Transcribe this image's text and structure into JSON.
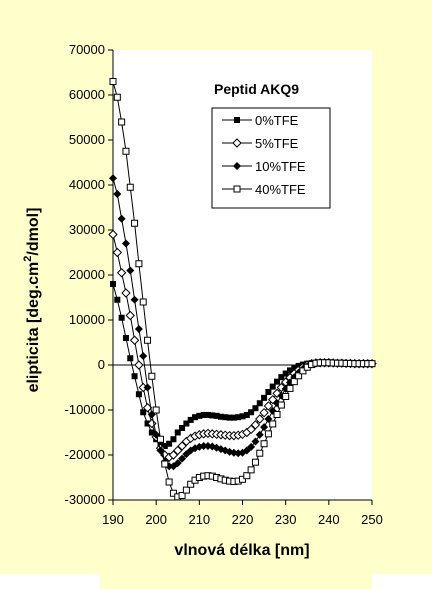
{
  "colors": {
    "background": "#ffffcc",
    "ink": "#000000",
    "plot_area": "#ffffff"
  },
  "chart_data": {
    "type": "line",
    "title": "",
    "xlabel": "vlnová délka [nm]",
    "ylabel_main": "elipticita [deg.cm",
    "ylabel_sup": "2",
    "ylabel_tail": "/dmol]",
    "xlim": [
      190,
      250
    ],
    "ylim": [
      -30000,
      70000
    ],
    "xticks": [
      "190",
      "200",
      "210",
      "220",
      "230",
      "240",
      "250"
    ],
    "yticks": [
      "70000",
      "60000",
      "50000",
      "40000",
      "30000",
      "20000",
      "10000",
      "0",
      "-10000",
      "-20000",
      "-30000"
    ],
    "grid": false,
    "legend": {
      "title": "Peptid  AKQ9",
      "placement": "inside top-right"
    },
    "series": [
      {
        "name": "0%TFE",
        "marker": "filled-square",
        "x": [
          190,
          191,
          192,
          193,
          194,
          195,
          196,
          197,
          198,
          199,
          200,
          201,
          202,
          203,
          204,
          205,
          206,
          207,
          208,
          209,
          210,
          211,
          212,
          213,
          214,
          215,
          216,
          217,
          218,
          219,
          220,
          221,
          222,
          223,
          224,
          225,
          226,
          227,
          228,
          229,
          230,
          231,
          232,
          233,
          234,
          235,
          236,
          237,
          238,
          239,
          240,
          241,
          242,
          243,
          244,
          245,
          246,
          247,
          248,
          249,
          250
        ],
        "y": [
          18000,
          14500,
          10500,
          6000,
          1500,
          -2500,
          -6500,
          -10500,
          -13000,
          -15000,
          -16500,
          -17800,
          -18000,
          -17500,
          -16500,
          -15000,
          -14000,
          -13000,
          -12200,
          -11600,
          -11300,
          -11100,
          -11100,
          -11200,
          -11300,
          -11500,
          -11600,
          -11700,
          -11700,
          -11600,
          -11400,
          -11100,
          -10500,
          -9600,
          -8500,
          -7300,
          -6000,
          -4800,
          -3700,
          -2700,
          -1900,
          -1200,
          -600,
          -200,
          100,
          300,
          400,
          450,
          450,
          450,
          400,
          400,
          350,
          350,
          300,
          300,
          300,
          300,
          300,
          300,
          300
        ]
      },
      {
        "name": "5%TFE",
        "marker": "open-diamond",
        "x": [
          190,
          191,
          192,
          193,
          194,
          195,
          196,
          197,
          198,
          199,
          200,
          201,
          202,
          203,
          204,
          205,
          206,
          207,
          208,
          209,
          210,
          211,
          212,
          213,
          214,
          215,
          216,
          217,
          218,
          219,
          220,
          221,
          222,
          223,
          224,
          225,
          226,
          227,
          228,
          229,
          230,
          231,
          232,
          233,
          234,
          235,
          236,
          237,
          238,
          239,
          240,
          241,
          242,
          243,
          244,
          245,
          246,
          247,
          248,
          249,
          250
        ],
        "y": [
          29000,
          25000,
          20500,
          16000,
          11000,
          5500,
          0,
          -5000,
          -9500,
          -13000,
          -16000,
          -18500,
          -20000,
          -20500,
          -20000,
          -19000,
          -18000,
          -17000,
          -16300,
          -15800,
          -15500,
          -15300,
          -15200,
          -15300,
          -15400,
          -15500,
          -15600,
          -15700,
          -15700,
          -15600,
          -15400,
          -15000,
          -14300,
          -13300,
          -12000,
          -10600,
          -9100,
          -7700,
          -6300,
          -5000,
          -3800,
          -2800,
          -1900,
          -1100,
          -500,
          0,
          300,
          450,
          500,
          500,
          500,
          450,
          400,
          400,
          350,
          350,
          300,
          300,
          300,
          300,
          300
        ]
      },
      {
        "name": "10%TFE",
        "marker": "filled-diamond",
        "x": [
          190,
          191,
          192,
          193,
          194,
          195,
          196,
          197,
          198,
          199,
          200,
          201,
          202,
          203,
          204,
          205,
          206,
          207,
          208,
          209,
          210,
          211,
          212,
          213,
          214,
          215,
          216,
          217,
          218,
          219,
          220,
          221,
          222,
          223,
          224,
          225,
          226,
          227,
          228,
          229,
          230,
          231,
          232,
          233,
          234,
          235,
          236,
          237,
          238,
          239,
          240,
          241,
          242,
          243,
          244,
          245,
          246,
          247,
          248,
          249,
          250
        ],
        "y": [
          41500,
          38000,
          32500,
          27000,
          21000,
          14500,
          8000,
          2000,
          -5000,
          -11000,
          -15500,
          -19000,
          -21500,
          -22500,
          -22500,
          -21800,
          -20800,
          -19800,
          -19000,
          -18500,
          -18200,
          -18000,
          -18000,
          -18100,
          -18400,
          -18700,
          -19000,
          -19300,
          -19500,
          -19600,
          -19500,
          -19000,
          -18200,
          -17000,
          -15500,
          -13800,
          -12000,
          -10200,
          -8500,
          -6800,
          -5300,
          -3900,
          -2700,
          -1700,
          -900,
          -300,
          200,
          400,
          500,
          500,
          500,
          450,
          400,
          400,
          350,
          350,
          300,
          300,
          300,
          300,
          300
        ]
      },
      {
        "name": "40%TFE",
        "marker": "open-square",
        "x": [
          190,
          191,
          192,
          193,
          194,
          195,
          196,
          197,
          198,
          199,
          200,
          201,
          202,
          203,
          204,
          205,
          206,
          207,
          208,
          209,
          210,
          211,
          212,
          213,
          214,
          215,
          216,
          217,
          218,
          219,
          220,
          221,
          222,
          223,
          224,
          225,
          226,
          227,
          228,
          229,
          230,
          231,
          232,
          233,
          234,
          235,
          236,
          237,
          238,
          239,
          240,
          241,
          242,
          243,
          244,
          245,
          246,
          247,
          248,
          249,
          250
        ],
        "y": [
          63000,
          59500,
          54000,
          47500,
          39500,
          31500,
          22500,
          14000,
          5500,
          -2500,
          -10000,
          -16500,
          -22000,
          -26000,
          -28500,
          -29300,
          -29000,
          -27800,
          -26500,
          -25600,
          -25000,
          -24700,
          -24600,
          -24700,
          -25000,
          -25300,
          -25600,
          -25800,
          -25900,
          -25800,
          -25400,
          -24600,
          -23300,
          -21600,
          -19600,
          -17500,
          -15300,
          -13100,
          -11000,
          -8900,
          -7000,
          -5200,
          -3700,
          -2400,
          -1300,
          -500,
          100,
          400,
          500,
          500,
          500,
          450,
          400,
          400,
          350,
          350,
          300,
          300,
          300,
          300,
          300
        ]
      }
    ]
  }
}
